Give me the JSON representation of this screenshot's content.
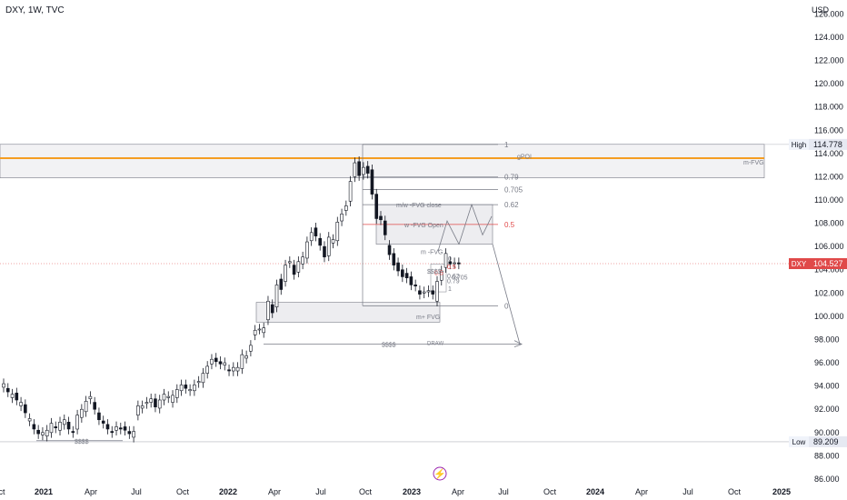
{
  "header": {
    "symbol_label": "DXY, 1W, TVC",
    "currency": "USD"
  },
  "colors": {
    "bull_fill": "#ffffff",
    "bear_fill": "#131722",
    "candle_stroke": "#131722",
    "zone_fill": "#e6e6e9",
    "zone_stroke": "#787b86",
    "orange_line": "#f59d22",
    "red_text": "#e04949",
    "grey_text": "#787b86",
    "price_tag": "#e04949"
  },
  "chart_data": {
    "type": "candlestick",
    "title": "DXY, 1W, TVC",
    "ylabel": "USD",
    "ylim": [
      84.2,
      127.2
    ],
    "y_ticks": [
      "86.000",
      "88.000",
      "90.000",
      "92.000",
      "94.000",
      "96.000",
      "98.000",
      "100.000",
      "102.000",
      "104.000",
      "106.000",
      "108.000",
      "110.000",
      "112.000",
      "114.000",
      "116.000",
      "118.000",
      "120.000",
      "122.000",
      "124.000",
      "126.000"
    ],
    "x_ticks": [
      "ct",
      "2021",
      "Apr",
      "Jul",
      "Oct",
      "2022",
      "Apr",
      "Jul",
      "Oct",
      "2023",
      "Apr",
      "Jul",
      "Oct",
      "2024",
      "Apr",
      "Jul",
      "Oct",
      "2025"
    ],
    "price_series": [
      [
        93.9,
        94.2
      ],
      [
        93.8,
        93.5
      ],
      [
        93.0,
        93.3
      ],
      [
        93.4,
        92.8
      ],
      [
        92.3,
        92.6
      ],
      [
        92.4,
        91.7
      ],
      [
        91.0,
        91.2
      ],
      [
        90.7,
        90.3
      ],
      [
        90.2,
        89.9
      ],
      [
        89.8,
        90.0
      ],
      [
        89.7,
        90.2
      ],
      [
        90.0,
        90.8
      ],
      [
        90.5,
        90.4
      ],
      [
        90.2,
        90.9
      ],
      [
        90.7,
        91.1
      ],
      [
        90.9,
        90.3
      ],
      [
        90.1,
        90.0
      ],
      [
        90.3,
        91.5
      ],
      [
        91.3,
        92.0
      ],
      [
        91.8,
        92.7
      ],
      [
        92.9,
        93.1
      ],
      [
        92.6,
        92.0
      ],
      [
        91.7,
        91.1
      ],
      [
        91.0,
        90.8
      ],
      [
        90.7,
        90.3
      ],
      [
        90.1,
        90.0
      ],
      [
        90.2,
        90.5
      ],
      [
        90.4,
        90.3
      ],
      [
        90.5,
        90.2
      ],
      [
        90.1,
        89.9
      ],
      [
        89.6,
        90.1
      ],
      [
        91.5,
        92.3
      ],
      [
        92.1,
        92.3
      ],
      [
        92.5,
        92.6
      ],
      [
        92.6,
        92.9
      ],
      [
        92.9,
        92.2
      ],
      [
        92.1,
        92.8
      ],
      [
        92.8,
        93.3
      ],
      [
        93.0,
        93.1
      ],
      [
        92.6,
        93.2
      ],
      [
        93.0,
        93.7
      ],
      [
        93.6,
        94.1
      ],
      [
        94.1,
        93.8
      ],
      [
        93.6,
        93.7
      ],
      [
        93.6,
        94.1
      ],
      [
        94.3,
        94.4
      ],
      [
        94.3,
        95.1
      ],
      [
        95.1,
        95.7
      ],
      [
        95.9,
        96.3
      ],
      [
        96.4,
        96.1
      ],
      [
        96.1,
        95.9
      ],
      [
        95.8,
        96.0
      ],
      [
        95.4,
        95.3
      ],
      [
        95.3,
        95.6
      ],
      [
        95.3,
        95.6
      ],
      [
        95.5,
        96.7
      ],
      [
        96.4,
        96.6
      ],
      [
        97.0,
        97.5
      ],
      [
        98.4,
        98.8
      ],
      [
        98.9,
        98.9
      ],
      [
        98.6,
        99.0
      ],
      [
        99.7,
        101.3
      ],
      [
        101.0,
        100.3
      ],
      [
        100.8,
        102.7
      ],
      [
        103.2,
        102.3
      ],
      [
        103.0,
        104.4
      ],
      [
        104.6,
        104.7
      ],
      [
        104.4,
        103.6
      ],
      [
        103.8,
        104.7
      ],
      [
        104.5,
        105.1
      ],
      [
        105.0,
        106.4
      ],
      [
        106.5,
        107.2
      ],
      [
        107.6,
        106.9
      ],
      [
        106.7,
        106.1
      ],
      [
        106.0,
        105.1
      ],
      [
        105.2,
        106.8
      ],
      [
        106.3,
        106.6
      ],
      [
        106.5,
        108.1
      ],
      [
        108.2,
        108.8
      ],
      [
        109.1,
        109.5
      ],
      [
        109.9,
        111.6
      ],
      [
        112.0,
        113.2
      ],
      [
        113.3,
        112.1
      ],
      [
        112.2,
        112.8
      ],
      [
        112.9,
        112.3
      ],
      [
        112.6,
        110.5
      ],
      [
        110.5,
        108.4
      ],
      [
        108.6,
        108.3
      ],
      [
        108.2,
        107.0
      ],
      [
        106.1,
        105.3
      ],
      [
        105.4,
        104.4
      ],
      [
        104.6,
        103.9
      ],
      [
        104.0,
        103.4
      ],
      [
        103.7,
        103.3
      ],
      [
        103.4,
        102.7
      ],
      [
        102.7,
        102.6
      ],
      [
        102.2,
        101.9
      ],
      [
        102.0,
        102.1
      ],
      [
        102.1,
        102.2
      ],
      [
        102.2,
        101.9
      ],
      [
        101.3,
        103.0
      ],
      [
        103.1,
        103.9
      ],
      [
        104.2,
        105.4
      ],
      [
        104.7,
        104.5
      ],
      [
        104.6,
        104.6
      ],
      [
        104.6,
        104.5
      ]
    ],
    "levels": [
      {
        "label": "1",
        "value": 114.78
      },
      {
        "label": "0.79",
        "value": 112.0
      },
      {
        "label": "0.705",
        "value": 110.9
      },
      {
        "label": "0.62",
        "value": 109.6
      },
      {
        "label": "0.5",
        "value": 107.9
      },
      {
        "label": "0",
        "value": 100.9
      }
    ],
    "zones": [
      {
        "label": "gPOI",
        "from": 111.9,
        "to": 114.8
      },
      {
        "label": "m-FVG",
        "from": 111.9,
        "to": 114.8
      },
      {
        "label": "m/w -FVG close",
        "from": 106.2,
        "to": 109.6
      },
      {
        "label": "w -FVG Open",
        "from": 106.2,
        "to": 109.6
      },
      {
        "label": "m+ FVG",
        "from": 99.5,
        "to": 101.2
      }
    ],
    "annotations": {
      "gpoi": "gPOI",
      "m_fvg": "m-FVG",
      "mw_fvg_close": "m/w -FVG close",
      "w_fvg_open": "w -FVG Open",
      "m_fvg_small": "m -FVG",
      "zero_small": "0",
      "m_plus_fvg": "m+ FVG",
      "dollars_mid": "$$$$",
      "dollars_low": "$$$$",
      "draw": "DRAW",
      "mini_5a": "0.5",
      "mini_5b": "0.5",
      "mini_ssss": "$$$$",
      "mini_62": "0.62",
      "mini_705": "0.705",
      "mini_79": "0.79",
      "mini_1": "1"
    },
    "price_labels": {
      "high_tag": "High",
      "high_value": "114.778",
      "current_tag": "DXY",
      "current_value": "104.527",
      "low_tag": "Low",
      "low_value": "89.209"
    },
    "high": 114.778,
    "current": 104.527,
    "low": 89.209
  }
}
